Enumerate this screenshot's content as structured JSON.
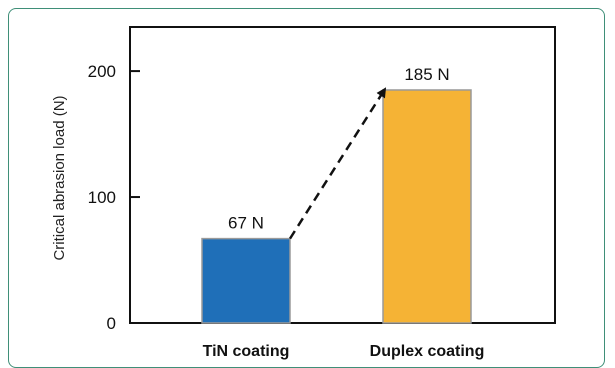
{
  "chart_data": {
    "type": "bar",
    "categories": [
      "TiN coating",
      "Duplex coating"
    ],
    "values": [
      67,
      185
    ],
    "data_labels": [
      "67 N",
      "185 N"
    ],
    "colors": [
      "#1f6fb8",
      "#f5b335"
    ],
    "title": "",
    "xlabel": "",
    "ylabel": "Critical abrasion load (N)",
    "ylim": [
      0,
      235
    ],
    "yticks": [
      0,
      100,
      200
    ],
    "grid": false,
    "annotation": "dashed arrow from TiN coating bar top to Duplex coating bar top"
  }
}
